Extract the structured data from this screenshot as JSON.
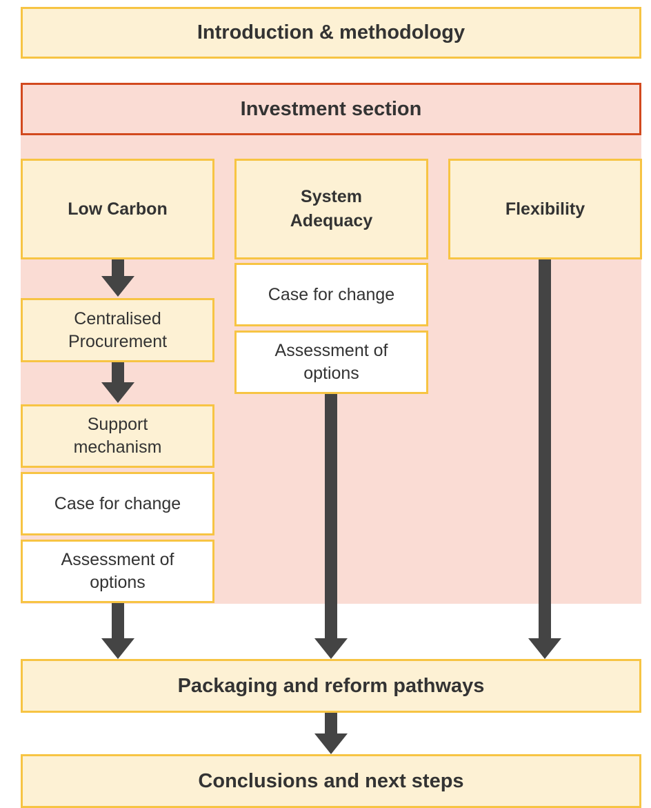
{
  "header": {
    "title": "Introduction & methodology"
  },
  "section": {
    "title": "Investment section"
  },
  "columns": [
    {
      "title": "Low Carbon",
      "steps": [
        "Centralised Procurement",
        "Support mechanism",
        "Case for change",
        "Assessment of options"
      ]
    },
    {
      "title": "System Adequacy",
      "steps": [
        "Case for change",
        "Assessment of options"
      ]
    },
    {
      "title": "Flexibility",
      "steps": []
    }
  ],
  "packaging": {
    "title": "Packaging and reform pathways"
  },
  "conclusions": {
    "title": "Conclusions and next steps"
  }
}
